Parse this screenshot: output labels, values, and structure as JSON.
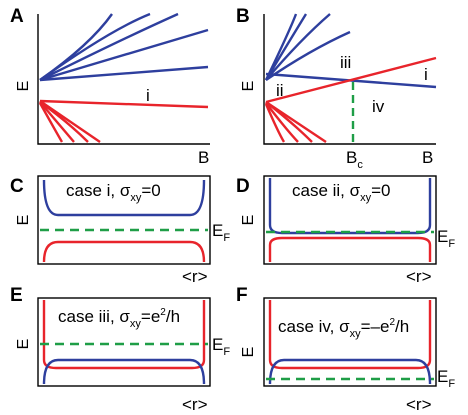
{
  "colors": {
    "blue": "#2e3f9e",
    "red": "#e8242b",
    "green": "#1f9e47",
    "black": "#000000"
  },
  "panels": {
    "A": {
      "label": "A",
      "y_axis": "E",
      "x_axis": "B",
      "annotation": "i"
    },
    "B": {
      "label": "B",
      "y_axis": "E",
      "x_axis": "B",
      "annotations": {
        "ii": "ii",
        "iii": "iii",
        "iv": "iv",
        "i": "i"
      },
      "bc_main": "B",
      "bc_sub": "c"
    },
    "C": {
      "label": "C",
      "y_axis": "E",
      "x_axis": "<r>",
      "case_text": "case i, σ",
      "sigma_sub": "xy",
      "sigma_value": "=0",
      "ef_main": "E",
      "ef_sub": "F"
    },
    "D": {
      "label": "D",
      "y_axis": "E",
      "x_axis": "<r>",
      "case_text": "case ii, σ",
      "sigma_sub": "xy",
      "sigma_value": "=0",
      "ef_main": "E",
      "ef_sub": "F"
    },
    "E": {
      "label": "E",
      "y_axis": "E",
      "x_axis": "<r>",
      "case_text": "case iii, σ",
      "sigma_sub": "xy",
      "sigma_value": "=e",
      "sigma_sup": "2",
      "sigma_tail": "/h",
      "ef_main": "E",
      "ef_sub": "F"
    },
    "F": {
      "label": "F",
      "y_axis": "E",
      "x_axis": "<r>",
      "case_text": "case iv, σ",
      "sigma_sub": "xy",
      "sigma_value": "=–e",
      "sigma_sup": "2",
      "sigma_tail": "/h",
      "ef_main": "E",
      "ef_sub": "F"
    }
  }
}
